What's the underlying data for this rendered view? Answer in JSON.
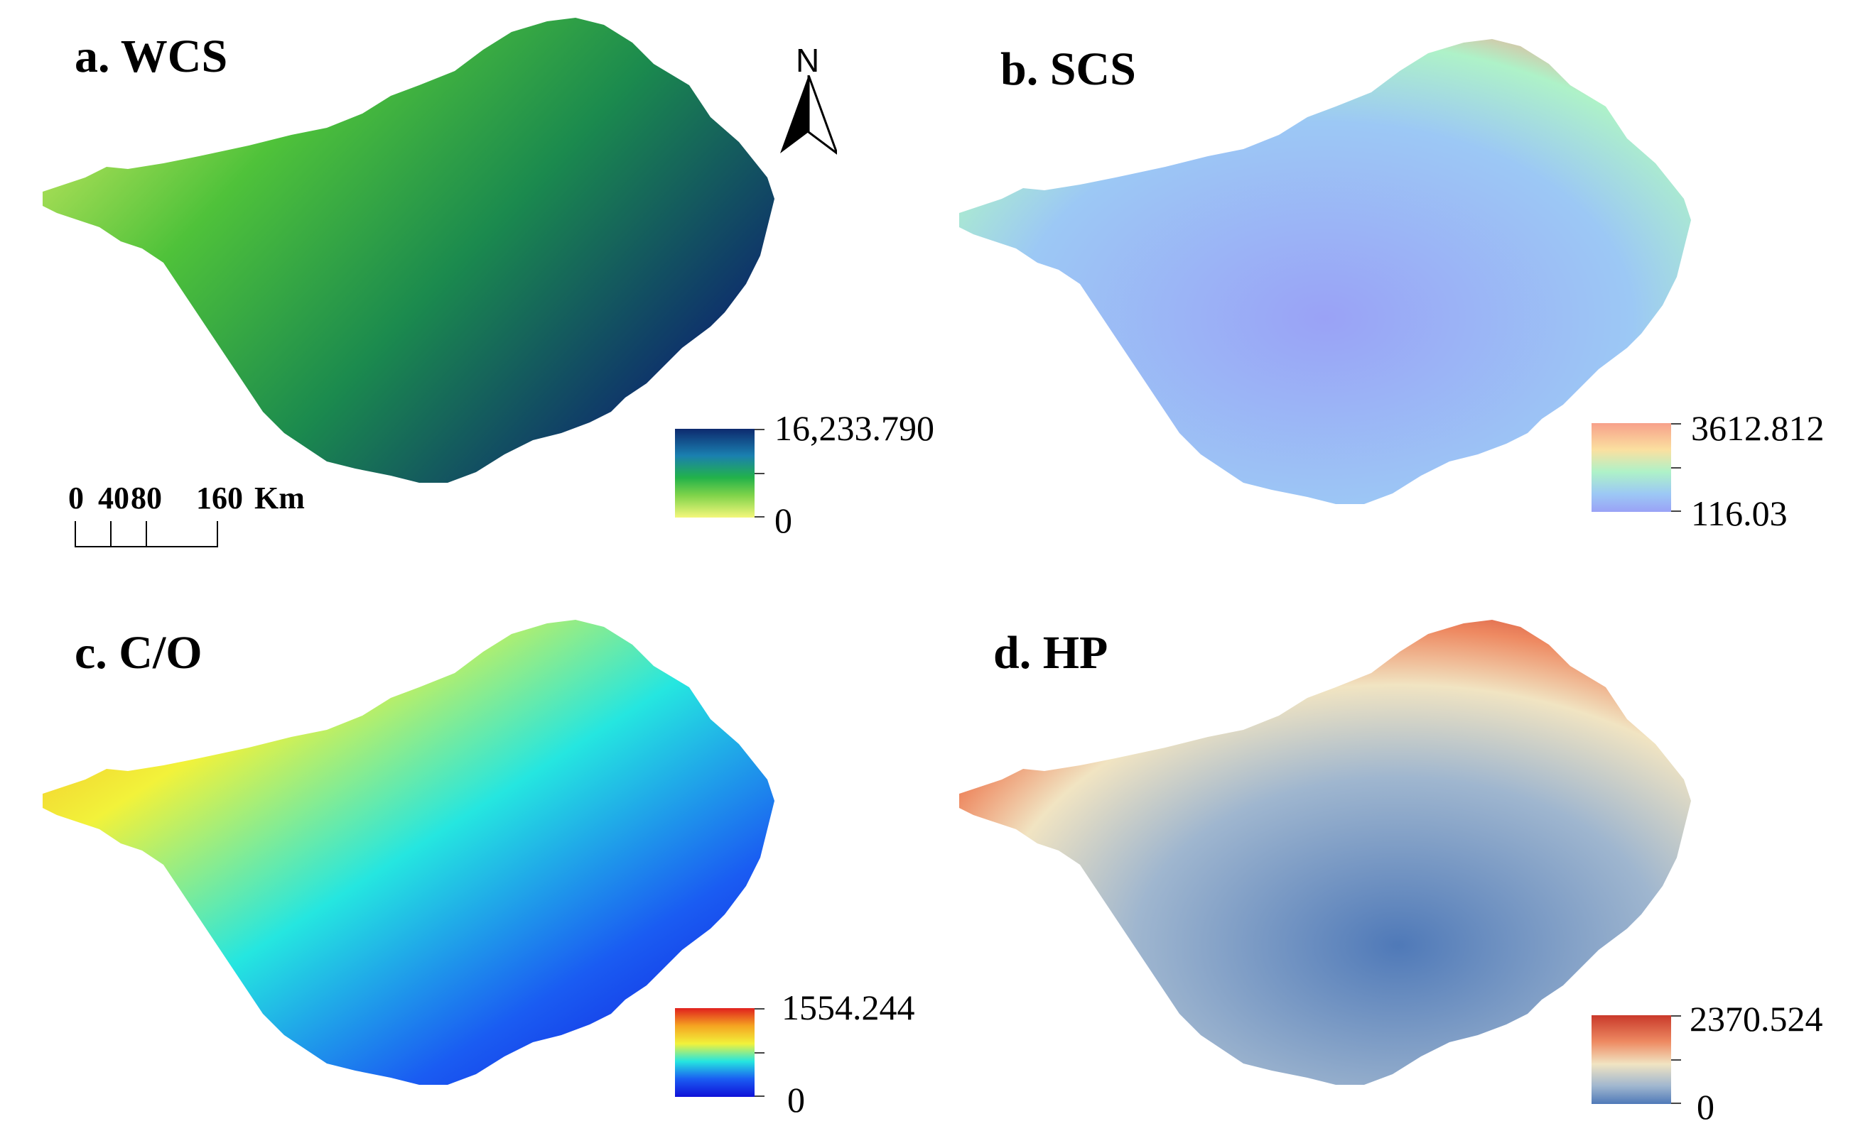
{
  "panels": [
    {
      "id": "a",
      "title": "a. WCS",
      "legend": {
        "max": "16,233.790",
        "min": "0",
        "colors": [
          "#0d2a6e",
          "#1a7fb0",
          "#22b24a",
          "#7fd34a",
          "#f4f77c"
        ]
      }
    },
    {
      "id": "b",
      "title": "b. SCS",
      "legend": {
        "max": "3612.812",
        "min": "116.03",
        "colors": [
          "#f7a08a",
          "#fbe0a0",
          "#aef2c8",
          "#9cc8f5",
          "#9aa2f6"
        ]
      }
    },
    {
      "id": "c",
      "title": "c. C/O",
      "legend": {
        "max": "1554.244",
        "min": "0",
        "colors": [
          "#e0201e",
          "#f5a421",
          "#f2f23a",
          "#25e6e0",
          "#1a5cf2",
          "#1010d8"
        ]
      }
    },
    {
      "id": "d",
      "title": "d. HP",
      "legend": {
        "max": "2370.524",
        "min": "0",
        "colors": [
          "#c9392a",
          "#ee8a62",
          "#f1e4c2",
          "#9fb6cf",
          "#4f79b8"
        ]
      }
    }
  ],
  "north_arrow": {
    "label": "N"
  },
  "scale_bar": {
    "labels": [
      "0",
      "40",
      "80",
      "160"
    ],
    "unit": "Km"
  }
}
